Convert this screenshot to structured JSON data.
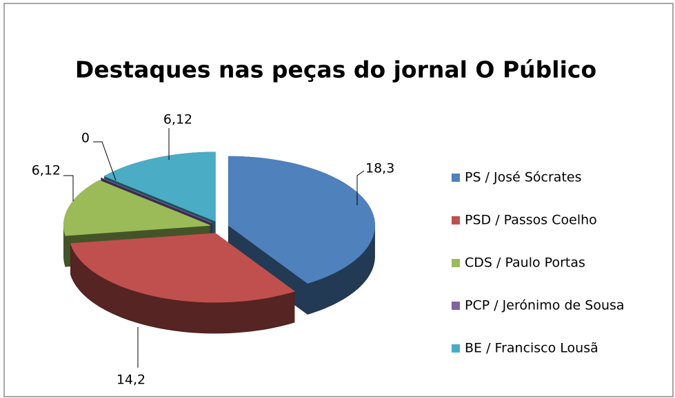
{
  "chart_data": {
    "type": "pie",
    "title": "Destaques nas peças do jornal O Público",
    "categories": [
      "PS / José Sócrates",
      "PSD / Passos Coelho",
      "CDS / Paulo Portas",
      "PCP / Jerónimo de Sousa",
      "BE / Francisco Lousã"
    ],
    "values": [
      18.3,
      14.2,
      6.12,
      0,
      6.12
    ],
    "value_labels": [
      "18,3",
      "14,2",
      "6,12",
      "0",
      "6,12"
    ],
    "colors": [
      "#4f81bd",
      "#c0504d",
      "#9bbb59",
      "#8064a2",
      "#4bacc6"
    ],
    "legend": "right"
  }
}
